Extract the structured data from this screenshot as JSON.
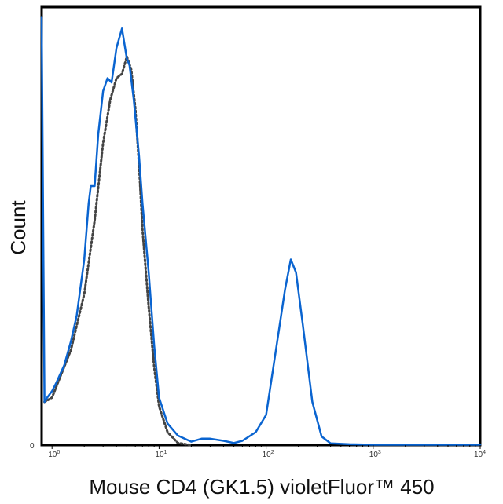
{
  "chart_data": {
    "type": "line",
    "title": "",
    "xlabel": "Mouse CD4 (GK1.5) violetFluor™ 450",
    "ylabel": "Count",
    "x_scale": "log",
    "xlim": [
      0.8,
      10000
    ],
    "ylim": [
      0,
      1
    ],
    "grid": false,
    "legend": "none",
    "y_tick_labels": [
      "0"
    ],
    "x_ticks": [
      {
        "value": 1,
        "mantissa": "10",
        "exp": "0"
      },
      {
        "value": 10,
        "mantissa": "10",
        "exp": "1"
      },
      {
        "value": 100,
        "mantissa": "10",
        "exp": "2"
      },
      {
        "value": 1000,
        "mantissa": "10",
        "exp": "3"
      },
      {
        "value": 10000,
        "mantissa": "10",
        "exp": "4"
      }
    ],
    "series": [
      {
        "color": "#0a64d0",
        "style": "solid",
        "points": [
          [
            0.8,
            0.99
          ],
          [
            0.85,
            0.1
          ],
          [
            0.9,
            0.11
          ],
          [
            1.0,
            0.125
          ],
          [
            1.1,
            0.145
          ],
          [
            1.3,
            0.185
          ],
          [
            1.5,
            0.24
          ],
          [
            1.7,
            0.3
          ],
          [
            2.0,
            0.43
          ],
          [
            2.2,
            0.56
          ],
          [
            2.3,
            0.6
          ],
          [
            2.5,
            0.6
          ],
          [
            2.7,
            0.72
          ],
          [
            3.0,
            0.82
          ],
          [
            3.3,
            0.85
          ],
          [
            3.6,
            0.84
          ],
          [
            4.0,
            0.92
          ],
          [
            4.5,
            0.965
          ],
          [
            5.0,
            0.895
          ],
          [
            5.3,
            0.88
          ],
          [
            5.8,
            0.8
          ],
          [
            6.5,
            0.67
          ],
          [
            7.0,
            0.56
          ],
          [
            8.0,
            0.4
          ],
          [
            9.0,
            0.23
          ],
          [
            10.0,
            0.11
          ],
          [
            12.0,
            0.05
          ],
          [
            15.0,
            0.022
          ],
          [
            20.0,
            0.008
          ],
          [
            25.0,
            0.015
          ],
          [
            30.0,
            0.015
          ],
          [
            40.0,
            0.01
          ],
          [
            50.0,
            0.005
          ],
          [
            60.0,
            0.01
          ],
          [
            80.0,
            0.03
          ],
          [
            100.0,
            0.07
          ],
          [
            120.0,
            0.2
          ],
          [
            150.0,
            0.36
          ],
          [
            170.0,
            0.43
          ],
          [
            190.0,
            0.4
          ],
          [
            220.0,
            0.28
          ],
          [
            270.0,
            0.1
          ],
          [
            330.0,
            0.02
          ],
          [
            400.0,
            0.004
          ],
          [
            600.0,
            0.002
          ],
          [
            1000.0,
            0.001
          ],
          [
            3000.0,
            0.001
          ],
          [
            10000.0,
            0.001
          ]
        ]
      },
      {
        "color": "#444444",
        "style": "dotted",
        "points": [
          [
            0.85,
            0.1
          ],
          [
            1.0,
            0.11
          ],
          [
            1.2,
            0.16
          ],
          [
            1.5,
            0.22
          ],
          [
            2.0,
            0.35
          ],
          [
            2.5,
            0.52
          ],
          [
            3.0,
            0.7
          ],
          [
            3.5,
            0.8
          ],
          [
            4.0,
            0.85
          ],
          [
            4.5,
            0.86
          ],
          [
            5.0,
            0.9
          ],
          [
            5.5,
            0.87
          ],
          [
            6.0,
            0.78
          ],
          [
            6.5,
            0.65
          ],
          [
            7.0,
            0.5
          ],
          [
            8.0,
            0.32
          ],
          [
            9.0,
            0.18
          ],
          [
            10.0,
            0.09
          ],
          [
            12.0,
            0.03
          ],
          [
            15.0,
            0.005
          ],
          [
            20.0,
            0.0
          ]
        ]
      }
    ]
  }
}
